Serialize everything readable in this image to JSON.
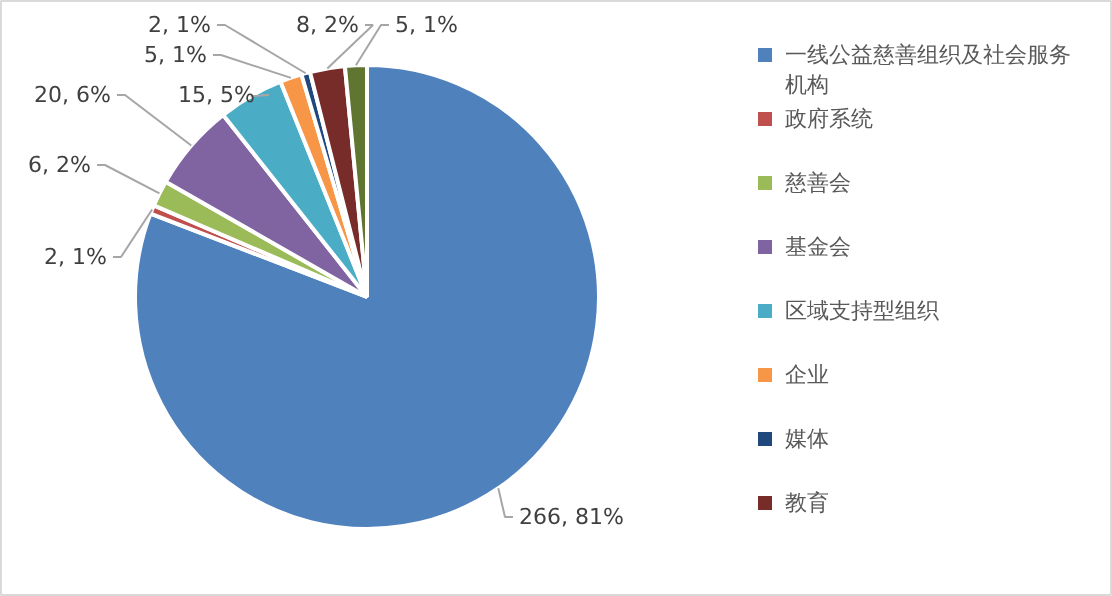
{
  "chart_data": {
    "type": "pie",
    "categories": [
      "一线公益慈善组织及社会服务机构",
      "政府系统",
      "慈善会",
      "基金会",
      "区域支持型组织",
      "企业",
      "媒体",
      "教育",
      null
    ],
    "values": [
      266,
      2,
      6,
      20,
      15,
      5,
      2,
      8,
      5
    ],
    "colors": [
      "#4f81bd",
      "#c0504d",
      "#9bbb59",
      "#8064a2",
      "#4bacc6",
      "#f79646",
      "#1f497d",
      "#772c2a",
      "#5f7530"
    ],
    "value_labels": [
      "266, 81%",
      "2, 1%",
      "6, 2%",
      "20, 6%",
      "15, 5%",
      "5, 1%",
      "2, 1%",
      "8, 2%",
      "5, 1%"
    ],
    "legend": "right"
  }
}
